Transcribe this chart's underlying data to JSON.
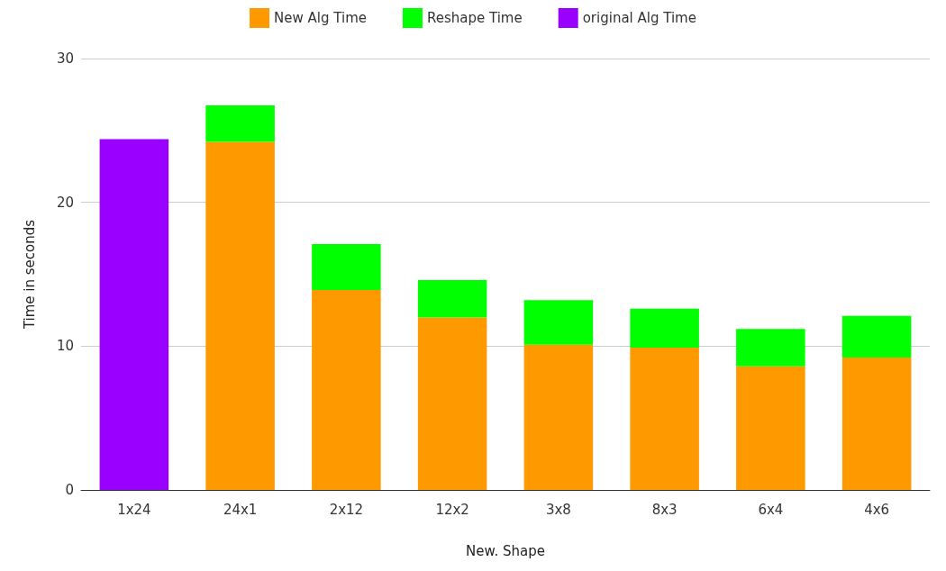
{
  "chart_data": {
    "type": "bar",
    "stacked": true,
    "xlabel": "New. Shape",
    "ylabel": "Time in seconds",
    "categories": [
      "1x24",
      "24x1",
      "2x12",
      "12x2",
      "3x8",
      "8x3",
      "6x4",
      "4x6"
    ],
    "series": [
      {
        "name": "New Alg Time",
        "color": "#ff9900",
        "values": [
          null,
          24.2,
          13.9,
          12.0,
          10.1,
          9.9,
          8.6,
          9.2
        ]
      },
      {
        "name": "Reshape Time",
        "color": "#00ff00",
        "values": [
          null,
          2.55,
          3.2,
          2.6,
          3.1,
          2.7,
          2.6,
          2.9
        ]
      },
      {
        "name": "original Alg Time",
        "color": "#9900ff",
        "values": [
          24.4,
          null,
          null,
          null,
          null,
          null,
          null,
          null
        ]
      }
    ],
    "ylim": [
      0,
      30
    ],
    "yticks": [
      0,
      10,
      20,
      30
    ],
    "grid": "y",
    "legend": "top"
  }
}
